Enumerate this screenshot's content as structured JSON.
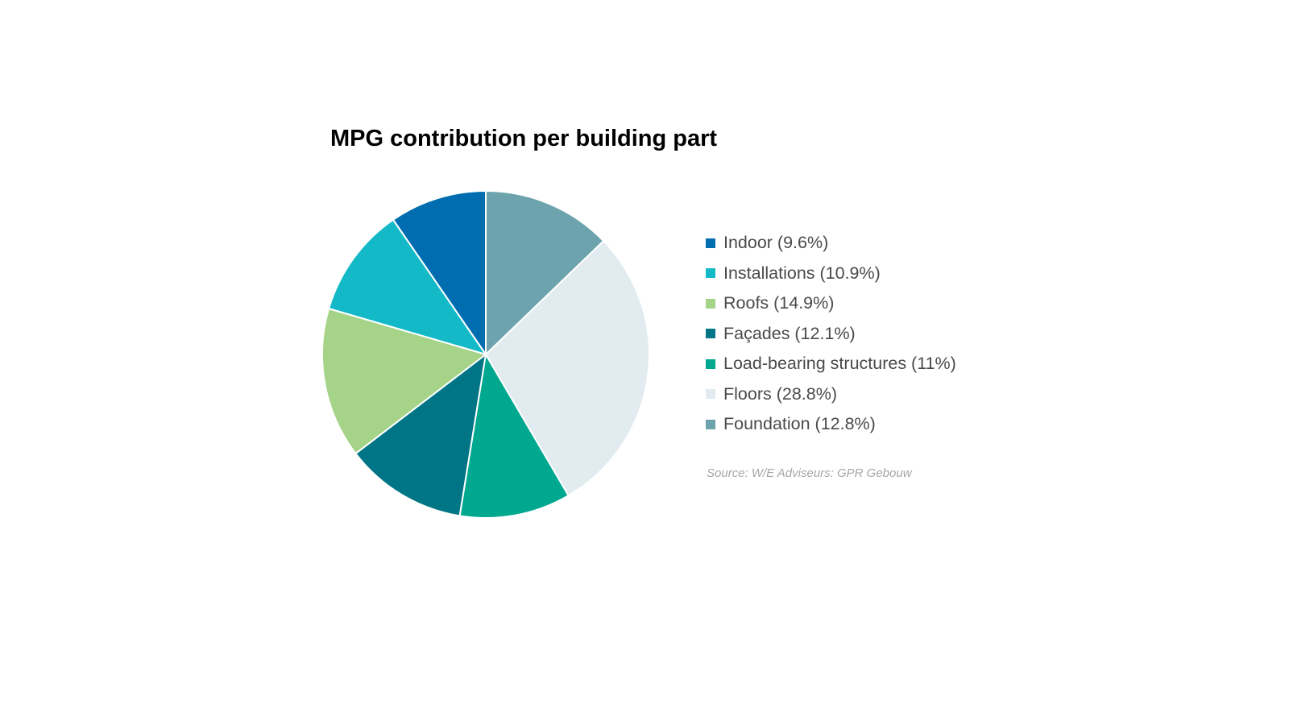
{
  "chart_data": {
    "type": "pie",
    "title": "MPG contribution per building part",
    "start": "top",
    "direction": "counter-clockwise",
    "slices": [
      {
        "label": "Indoor (9.6%)",
        "value": 9.6,
        "color": "#006DB0"
      },
      {
        "label": "Installations (10.9%)",
        "value": 10.9,
        "color": "#14B9C8"
      },
      {
        "label": "Roofs (14.9%)",
        "value": 14.9,
        "color": "#A5D387"
      },
      {
        "label": "Façades (12.1%)",
        "value": 12.1,
        "color": "#007585"
      },
      {
        "label": "Load-bearing structures (11%)",
        "value": 11,
        "color": "#00A890"
      },
      {
        "label": "Floors (28.8%)",
        "value": 28.8,
        "color": "#E2EBF0"
      },
      {
        "label": "Foundation (12.8%)",
        "value": 12.8,
        "color": "#6DA3AD"
      }
    ],
    "legend": "right",
    "source": "Source: W/E Adviseurs: GPR Gebouw"
  }
}
